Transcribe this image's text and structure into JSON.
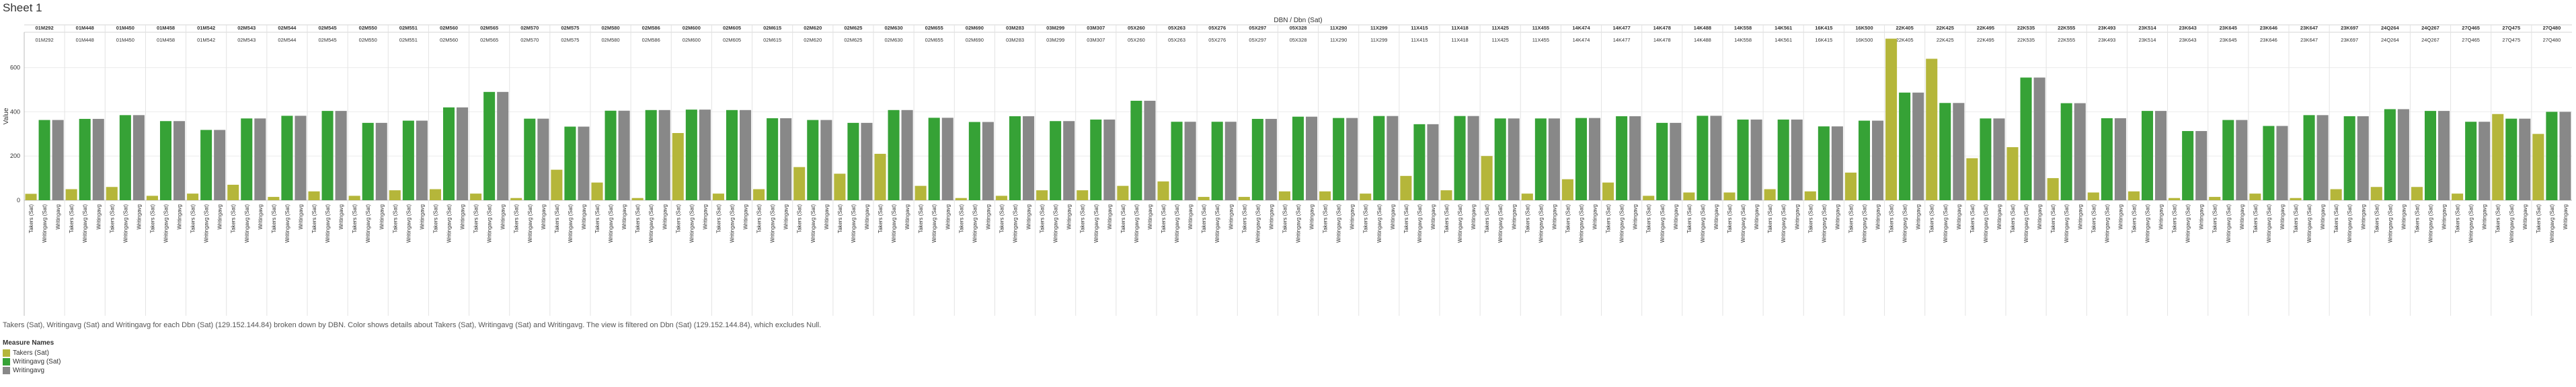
{
  "sheet": {
    "title": "Sheet 1"
  },
  "caption": "Takers (Sat), Writingavg (Sat) and Writingavg for each Dbn (Sat) (129.152.144.84) broken down by DBN.  Color shows details about Takers (Sat), Writingavg (Sat) and Writingavg. The view is filtered on Dbn (Sat) (129.152.144.84), which excludes Null.",
  "legend": {
    "title": "Measure Names",
    "items": [
      {
        "label": "Takers (Sat)",
        "color": "#b5b63a"
      },
      {
        "label": "Writingavg (Sat)",
        "color": "#36a236"
      },
      {
        "label": "Writingavg",
        "color": "#888888"
      }
    ]
  },
  "chart_data": {
    "type": "bar",
    "outer_header": "DBN  /  Dbn (Sat)",
    "ylabel": "Value",
    "ylim": [
      0,
      760
    ],
    "yticks": [
      0,
      200,
      400,
      600
    ],
    "grid": true,
    "measure_labels": [
      "Takers (Sat)",
      "Writingavg (Sat)",
      "Writingavg"
    ],
    "series_colors": [
      "#b5b63a",
      "#36a236",
      "#888888"
    ],
    "groups": [
      {
        "dbn": "01M292",
        "dbn_sat": "01M292",
        "values": [
          29,
          363,
          363
        ]
      },
      {
        "dbn": "01M448",
        "dbn_sat": "01M448",
        "values": [
          50,
          368,
          368
        ]
      },
      {
        "dbn": "01M450",
        "dbn_sat": "01M450",
        "values": [
          60,
          385,
          385
        ]
      },
      {
        "dbn": "01M458",
        "dbn_sat": "01M458",
        "values": [
          20,
          358,
          358
        ]
      },
      {
        "dbn": "01M542",
        "dbn_sat": "01M542",
        "values": [
          30,
          318,
          318
        ]
      },
      {
        "dbn": "02M543",
        "dbn_sat": "02M543",
        "values": [
          70,
          370,
          370
        ]
      },
      {
        "dbn": "02M544",
        "dbn_sat": "02M544",
        "values": [
          15,
          382,
          382
        ]
      },
      {
        "dbn": "02M545",
        "dbn_sat": "02M545",
        "values": [
          40,
          404,
          404
        ]
      },
      {
        "dbn": "02M550",
        "dbn_sat": "02M550",
        "values": [
          20,
          350,
          350
        ]
      },
      {
        "dbn": "02M551",
        "dbn_sat": "02M551",
        "values": [
          45,
          360,
          360
        ]
      },
      {
        "dbn": "02M560",
        "dbn_sat": "02M560",
        "values": [
          50,
          420,
          420
        ]
      },
      {
        "dbn": "02M565",
        "dbn_sat": "02M565",
        "values": [
          30,
          490,
          490
        ]
      },
      {
        "dbn": "02M570",
        "dbn_sat": "02M570",
        "values": [
          10,
          369,
          369
        ]
      },
      {
        "dbn": "02M575",
        "dbn_sat": "02M575",
        "values": [
          138,
          333,
          333
        ]
      },
      {
        "dbn": "02M580",
        "dbn_sat": "02M580",
        "values": [
          80,
          405,
          405
        ]
      },
      {
        "dbn": "02M586",
        "dbn_sat": "02M586",
        "values": [
          10,
          408,
          408
        ]
      },
      {
        "dbn": "02M600",
        "dbn_sat": "02M600",
        "values": [
          304,
          410,
          410
        ]
      },
      {
        "dbn": "02M605",
        "dbn_sat": "02M605",
        "values": [
          30,
          408,
          408
        ]
      },
      {
        "dbn": "02M615",
        "dbn_sat": "02M615",
        "values": [
          50,
          371,
          371
        ]
      },
      {
        "dbn": "02M620",
        "dbn_sat": "02M620",
        "values": [
          150,
          363,
          363
        ]
      },
      {
        "dbn": "02M625",
        "dbn_sat": "02M625",
        "values": [
          120,
          350,
          350
        ]
      },
      {
        "dbn": "02M630",
        "dbn_sat": "02M630",
        "values": [
          210,
          408,
          408
        ]
      },
      {
        "dbn": "02M655",
        "dbn_sat": "02M655",
        "values": [
          65,
          373,
          373
        ]
      },
      {
        "dbn": "02M690",
        "dbn_sat": "02M690",
        "values": [
          10,
          354,
          354
        ]
      },
      {
        "dbn": "03M283",
        "dbn_sat": "03M283",
        "values": [
          20,
          380,
          380
        ]
      },
      {
        "dbn": "03M299",
        "dbn_sat": "03M299",
        "values": [
          45,
          358,
          358
        ]
      },
      {
        "dbn": "03M307",
        "dbn_sat": "03M307",
        "values": [
          45,
          365,
          365
        ]
      },
      {
        "dbn": "05X260",
        "dbn_sat": "05X260",
        "values": [
          65,
          450,
          450
        ]
      },
      {
        "dbn": "05X263",
        "dbn_sat": "05X263",
        "values": [
          85,
          355,
          355
        ]
      },
      {
        "dbn": "05X276",
        "dbn_sat": "05X276",
        "values": [
          15,
          355,
          355
        ]
      },
      {
        "dbn": "05X297",
        "dbn_sat": "05X297",
        "values": [
          15,
          368,
          368
        ]
      },
      {
        "dbn": "05X328",
        "dbn_sat": "05X328",
        "values": [
          40,
          378,
          378
        ]
      },
      {
        "dbn": "11X290",
        "dbn_sat": "11X290",
        "values": [
          40,
          372,
          372
        ]
      },
      {
        "dbn": "11X299",
        "dbn_sat": "11X299",
        "values": [
          30,
          381,
          381
        ]
      },
      {
        "dbn": "11X415",
        "dbn_sat": "11X415",
        "values": [
          110,
          344,
          344
        ]
      },
      {
        "dbn": "11X418",
        "dbn_sat": "11X418",
        "values": [
          45,
          381,
          381
        ]
      },
      {
        "dbn": "11X425",
        "dbn_sat": "11X425",
        "values": [
          200,
          370,
          370
        ]
      },
      {
        "dbn": "11X455",
        "dbn_sat": "11X455",
        "values": [
          30,
          370,
          370
        ]
      },
      {
        "dbn": "14K474",
        "dbn_sat": "14K474",
        "values": [
          95,
          372,
          372
        ]
      },
      {
        "dbn": "14K477",
        "dbn_sat": "14K477",
        "values": [
          80,
          380,
          380
        ]
      },
      {
        "dbn": "14K478",
        "dbn_sat": "14K478",
        "values": [
          20,
          350,
          350
        ]
      },
      {
        "dbn": "14K488",
        "dbn_sat": "14K488",
        "values": [
          35,
          382,
          382
        ]
      },
      {
        "dbn": "14K558",
        "dbn_sat": "14K558",
        "values": [
          35,
          365,
          365
        ]
      },
      {
        "dbn": "14K561",
        "dbn_sat": "14K561",
        "values": [
          50,
          365,
          365
        ]
      },
      {
        "dbn": "16K415",
        "dbn_sat": "16K415",
        "values": [
          40,
          334,
          334
        ]
      },
      {
        "dbn": "16K500",
        "dbn_sat": "16K500",
        "values": [
          125,
          360,
          360
        ]
      },
      {
        "dbn": "22K405",
        "dbn_sat": "22K405",
        "values": [
          731,
          487,
          487
        ]
      },
      {
        "dbn": "22K425",
        "dbn_sat": "22K425",
        "values": [
          640,
          440,
          440
        ]
      },
      {
        "dbn": "22K495",
        "dbn_sat": "22K495",
        "values": [
          190,
          370,
          370
        ]
      },
      {
        "dbn": "22K535",
        "dbn_sat": "22K535",
        "values": [
          240,
          555,
          555
        ]
      },
      {
        "dbn": "22K555",
        "dbn_sat": "22K555",
        "values": [
          100,
          439,
          439
        ]
      },
      {
        "dbn": "23K493",
        "dbn_sat": "23K493",
        "values": [
          35,
          371,
          371
        ]
      },
      {
        "dbn": "23K514",
        "dbn_sat": "23K514",
        "values": [
          40,
          404,
          404
        ]
      },
      {
        "dbn": "23K643",
        "dbn_sat": "23K643",
        "values": [
          10,
          313,
          313
        ]
      },
      {
        "dbn": "23K645",
        "dbn_sat": "23K645",
        "values": [
          15,
          363,
          363
        ]
      },
      {
        "dbn": "23K646",
        "dbn_sat": "23K646",
        "values": [
          30,
          336,
          336
        ]
      },
      {
        "dbn": "23K647",
        "dbn_sat": "23K647",
        "values": [
          10,
          385,
          385
        ]
      },
      {
        "dbn": "23K697",
        "dbn_sat": "23K697",
        "values": [
          50,
          380,
          380
        ]
      },
      {
        "dbn": "24Q264",
        "dbn_sat": "24Q264",
        "values": [
          60,
          412,
          412
        ]
      },
      {
        "dbn": "24Q267",
        "dbn_sat": "24Q267",
        "values": [
          60,
          404,
          404
        ]
      },
      {
        "dbn": "27Q465",
        "dbn_sat": "27Q465",
        "values": [
          30,
          355,
          355
        ]
      },
      {
        "dbn": "27Q475",
        "dbn_sat": "27Q475",
        "values": [
          390,
          369,
          369
        ]
      },
      {
        "dbn": "27Q480",
        "dbn_sat": "27Q480",
        "values": [
          300,
          400,
          400
        ]
      }
    ]
  }
}
